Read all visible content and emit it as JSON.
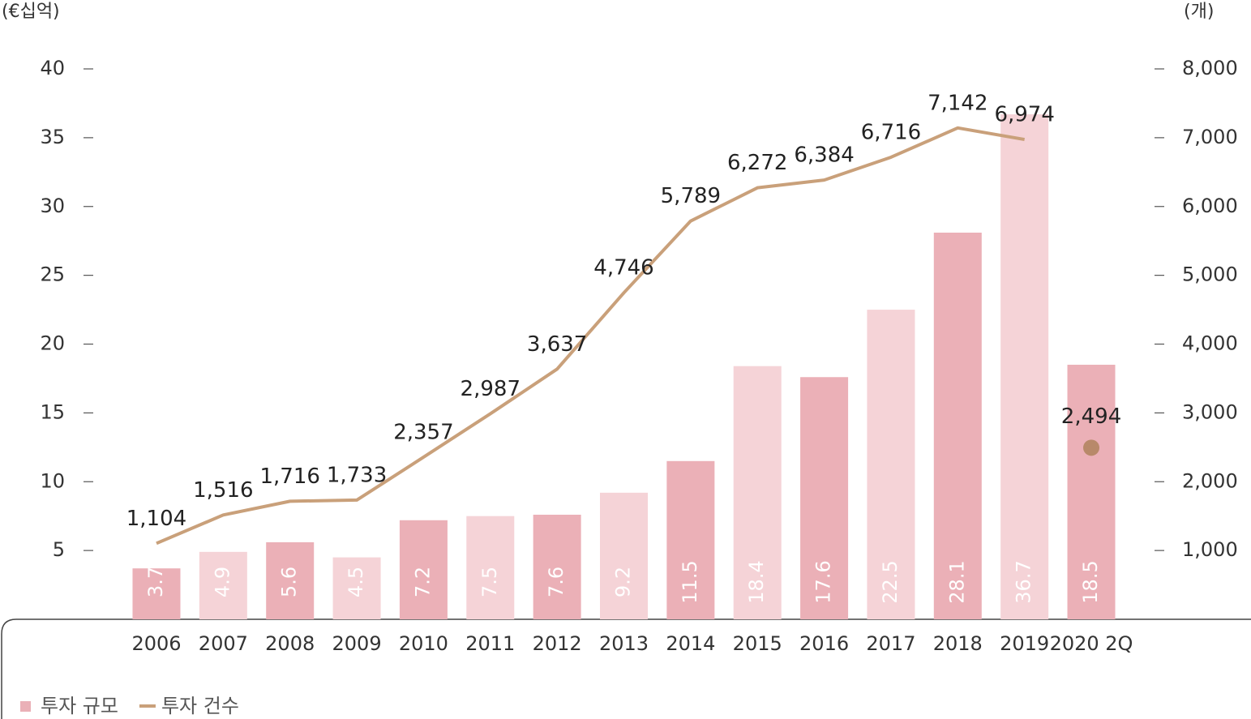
{
  "chart_data": {
    "type": "bar",
    "y_unit": "(€십억)",
    "y2_unit": "(개)",
    "categories": [
      "2006",
      "2007",
      "2008",
      "2009",
      "2010",
      "2011",
      "2012",
      "2013",
      "2014",
      "2015",
      "2016",
      "2017",
      "2018",
      "2019",
      "2020 2Q"
    ],
    "series": [
      {
        "name": "투자 규모",
        "type": "bar",
        "color": "#eab0b7",
        "colors": [
          "#ebb0b7",
          "#f5d3d7",
          "#ebb0b7",
          "#f5d3d7",
          "#ebb0b7",
          "#f5d3d7",
          "#ebb0b7",
          "#f5d3d7",
          "#ebb0b7",
          "#f5d3d7",
          "#ebb0b7",
          "#f5d3d7",
          "#ebb0b7",
          "#f5d3d7",
          "#ebb0b7"
        ],
        "values": [
          3.7,
          4.9,
          5.6,
          4.5,
          7.2,
          7.5,
          7.6,
          9.2,
          11.5,
          18.4,
          17.6,
          22.5,
          28.1,
          36.7,
          18.5
        ]
      },
      {
        "name": "투자 건수",
        "type": "line",
        "axis": "y2",
        "color": "#c9a07a",
        "last_point_color": "#b8896a",
        "last_point_separate": true,
        "values": [
          1104,
          1516,
          1716,
          1733,
          2357,
          2987,
          3637,
          4746,
          5789,
          6272,
          6384,
          6716,
          7142,
          6974,
          2494
        ],
        "value_labels": [
          "1,104",
          "1,516",
          "1,716",
          "1,733",
          "2,357",
          "2,987",
          "3,637",
          "4,746",
          "5,789",
          "6,272",
          "6,384",
          "6,716",
          "7,142",
          "6,974",
          "2,494"
        ]
      }
    ],
    "ylim": [
      0,
      40
    ],
    "yticks": [
      5,
      10,
      15,
      20,
      25,
      30,
      35,
      40
    ],
    "y2lim": [
      0,
      8000
    ],
    "y2ticks": [
      {
        "value": 1000,
        "label": "1,000"
      },
      {
        "value": 2000,
        "label": "2,000"
      },
      {
        "value": 3000,
        "label": "3,000"
      },
      {
        "value": 4000,
        "label": "4,000"
      },
      {
        "value": 5000,
        "label": "5,000"
      },
      {
        "value": 6000,
        "label": "6,000"
      },
      {
        "value": 7000,
        "label": "7,000"
      },
      {
        "value": 8000,
        "label": "8,000"
      }
    ],
    "legend": "bottom-left"
  }
}
